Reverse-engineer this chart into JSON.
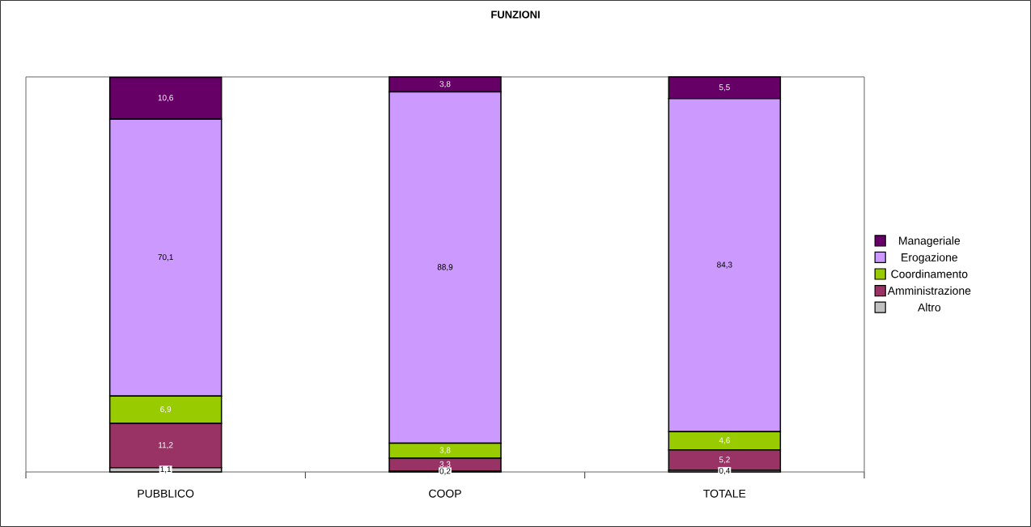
{
  "chart_data": {
    "type": "bar",
    "title": "FUNZIONI",
    "stacked": true,
    "legend": "right",
    "ylim": [
      0,
      100
    ],
    "tick_labels": "x",
    "categories": [
      "PUBBLICO",
      "COOP",
      "TOTALE"
    ],
    "series": [
      {
        "name": "Altro",
        "color": "#c0c0c0",
        "values": [
          1.1,
          0.2,
          0.4
        ],
        "value_labels": [
          "1,1",
          "0,2",
          "0,4"
        ]
      },
      {
        "name": "Amministrazione",
        "color": "#993366",
        "values": [
          11.2,
          3.3,
          5.2
        ],
        "value_labels": [
          "11,2",
          "3,3",
          "5,2"
        ]
      },
      {
        "name": "Coordinamento",
        "color": "#99cc00",
        "values": [
          6.9,
          3.8,
          4.6
        ],
        "value_labels": [
          "6,9",
          "3,8",
          "4,6"
        ]
      },
      {
        "name": "Erogazione",
        "color": "#cc99ff",
        "values": [
          70.1,
          88.9,
          84.3
        ],
        "value_labels": [
          "70,1",
          "88,9",
          "84,3"
        ]
      },
      {
        "name": "Manageriale",
        "color": "#660066",
        "values": [
          10.6,
          3.8,
          5.5
        ],
        "value_labels": [
          "10,6",
          "3,8",
          "5,5"
        ]
      }
    ]
  }
}
